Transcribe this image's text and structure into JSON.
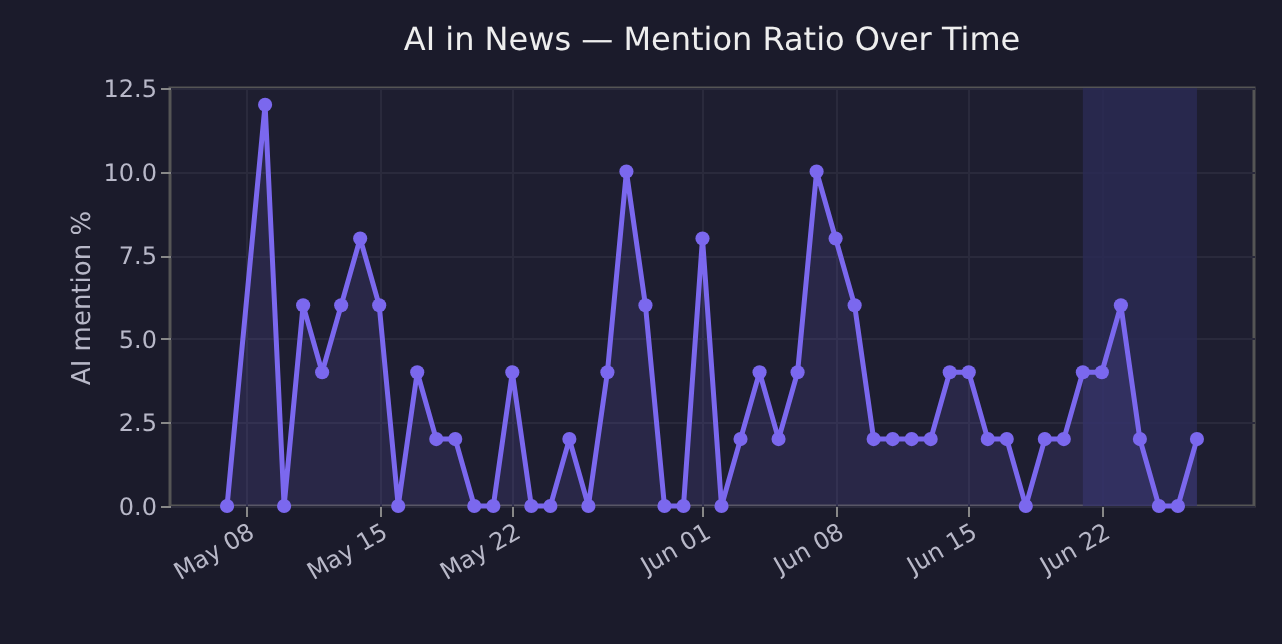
{
  "chart_data": {
    "type": "area",
    "title": "AI in News — Mention Ratio Over Time",
    "ylabel": "AI mention %",
    "x": [
      "--05-07",
      "--05-09",
      "--05-10",
      "--05-11",
      "--05-12",
      "--05-13",
      "--05-14",
      "--05-15",
      "--05-16",
      "--05-17",
      "--05-18",
      "--05-19",
      "--05-20",
      "--05-21",
      "--05-22",
      "--05-23",
      "--05-24",
      "--05-25",
      "--05-26",
      "--05-27",
      "--05-28",
      "--05-29",
      "--05-30",
      "--05-31",
      "--06-01",
      "--06-02",
      "--06-03",
      "--06-04",
      "--06-05",
      "--06-06",
      "--06-07",
      "--06-08",
      "--06-09",
      "--06-10",
      "--06-11",
      "--06-12",
      "--06-13",
      "--06-14",
      "--06-15",
      "--06-16",
      "--06-17",
      "--06-18",
      "--06-19",
      "--06-20",
      "--06-21",
      "--06-22",
      "--06-23",
      "--06-24",
      "--06-25",
      "--06-26",
      "--06-27"
    ],
    "series": [
      {
        "color": "#7b68ee",
        "values": [
          0,
          12,
          0,
          6,
          4,
          6,
          8,
          6,
          0,
          4,
          2,
          2,
          0,
          0,
          4,
          0,
          0,
          2,
          0,
          4,
          10,
          6,
          0,
          0,
          8,
          0,
          2,
          4,
          2,
          4,
          10,
          8,
          6,
          2,
          2,
          2,
          2,
          4,
          4,
          2,
          2,
          0,
          2,
          2,
          4,
          4,
          6,
          2,
          0,
          0,
          2
        ]
      }
    ],
    "xlim": [
      "--05-04",
      "--06-30"
    ],
    "xticks": [
      {
        "value": "--05-08",
        "label": "May 08"
      },
      {
        "value": "--05-15",
        "label": "May 15"
      },
      {
        "value": "--05-22",
        "label": "May 22"
      },
      {
        "value": "--06-01",
        "label": "Jun 01"
      },
      {
        "value": "--06-08",
        "label": "Jun 08"
      },
      {
        "value": "--06-15",
        "label": "Jun 15"
      },
      {
        "value": "--06-22",
        "label": "Jun 22"
      }
    ],
    "ylim": [
      0,
      12.5
    ],
    "yticks": [
      {
        "value": 0,
        "label": "0.0"
      },
      {
        "value": 2.5,
        "label": "2.5"
      },
      {
        "value": 5,
        "label": "5.0"
      },
      {
        "value": 7.5,
        "label": "7.5"
      },
      {
        "value": 10,
        "label": "10.0"
      },
      {
        "value": 12.5,
        "label": "12.5"
      }
    ],
    "bands": [
      {
        "axis": "x",
        "from": "--06-21",
        "to": "--06-27",
        "color": "#2a2a55"
      }
    ],
    "grid": true,
    "marker": "circle",
    "line_style": "solid"
  }
}
